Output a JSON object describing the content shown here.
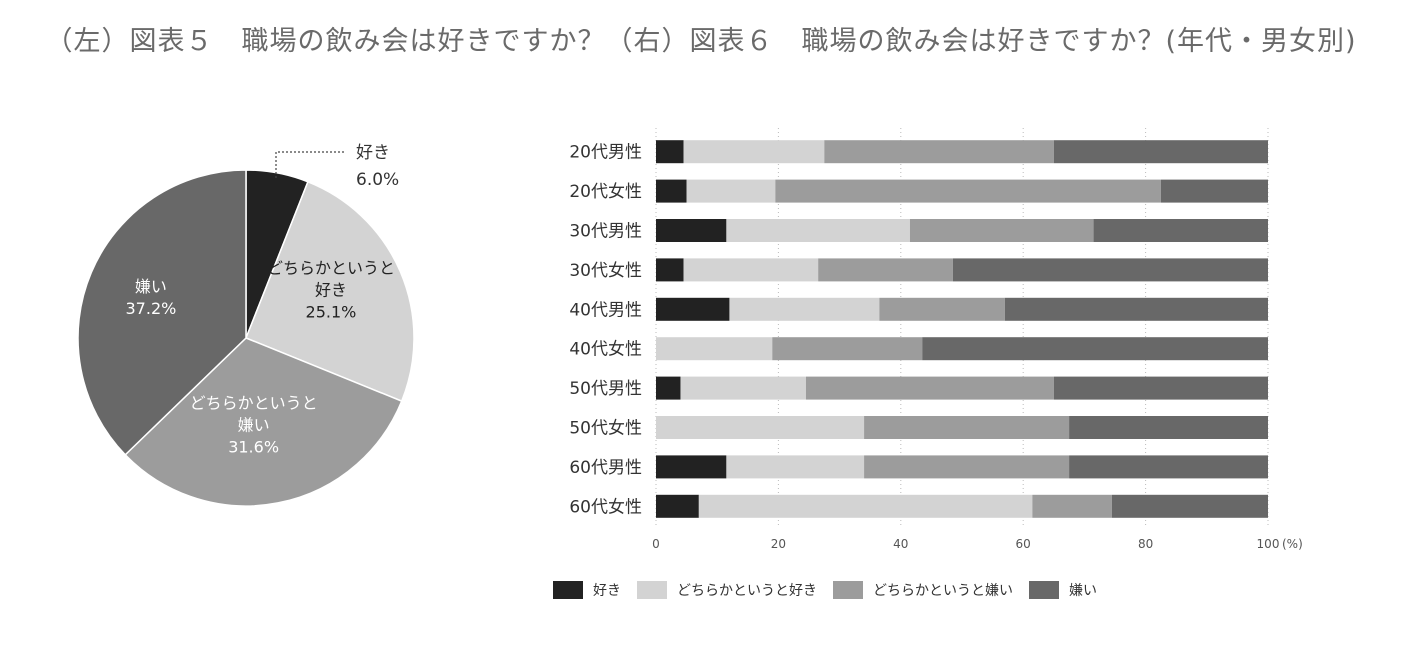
{
  "title": "（左）図表５　職場の飲み会は好きですか？（右）図表６　職場の飲み会は好きですか？(年代・男女別)",
  "colors": {
    "like": "#222222",
    "somewhat_like": "#d3d3d3",
    "somewhat_dislike": "#9c9c9c",
    "dislike": "#686868"
  },
  "chart_data": [
    {
      "type": "pie",
      "slices": [
        {
          "label": "好き",
          "value": 6.0,
          "value_label": "6.0%",
          "color_key": "like"
        },
        {
          "label": "どちらかというと好き",
          "value": 25.1,
          "value_label": "25.1%",
          "color_key": "somewhat_like"
        },
        {
          "label": "どちらかというと嫌い",
          "value": 31.6,
          "value_label": "31.6%",
          "color_key": "somewhat_dislike"
        },
        {
          "label": "嫌い",
          "value": 37.2,
          "value_label": "37.2%",
          "color_key": "dislike"
        }
      ]
    },
    {
      "type": "bar",
      "orientation": "horizontal",
      "stacked": true,
      "categories": [
        "20代男性",
        "20代女性",
        "30代男性",
        "30代女性",
        "40代男性",
        "40代女性",
        "50代男性",
        "50代女性",
        "60代男性",
        "60代女性"
      ],
      "series": [
        {
          "name": "好き",
          "color_key": "like",
          "values": [
            4.5,
            5.0,
            11.5,
            4.5,
            12.0,
            0.0,
            4.0,
            0.0,
            11.5,
            7.0
          ]
        },
        {
          "name": "どちらかというと好き",
          "color_key": "somewhat_like",
          "values": [
            23.0,
            14.5,
            30.0,
            22.0,
            24.5,
            19.0,
            20.5,
            34.0,
            22.5,
            54.5
          ]
        },
        {
          "name": "どちらかというと嫌い",
          "color_key": "somewhat_dislike",
          "values": [
            37.5,
            63.0,
            30.0,
            22.0,
            20.5,
            24.5,
            40.5,
            33.5,
            33.5,
            13.0
          ]
        },
        {
          "name": "嫌い",
          "color_key": "dislike",
          "values": [
            35.0,
            17.5,
            28.5,
            51.5,
            43.0,
            56.5,
            35.0,
            32.5,
            32.5,
            25.5
          ]
        }
      ],
      "x_ticks": [
        0,
        20,
        40,
        60,
        80,
        100
      ],
      "x_unit": "(%)",
      "xlim": [
        0,
        100
      ],
      "grid": true,
      "legend_position": "bottom"
    }
  ]
}
